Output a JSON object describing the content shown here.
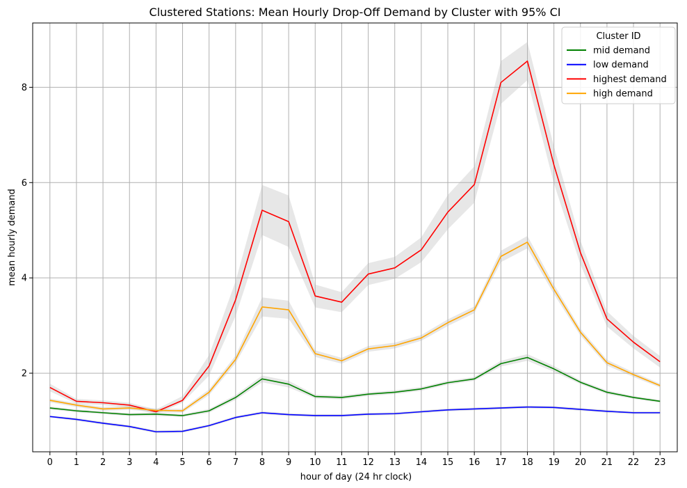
{
  "chart_data": {
    "type": "line",
    "title": "Clustered Stations: Mean Hourly Drop-Off Demand by Cluster with 95% CI",
    "xlabel": "hour of day (24 hr clock)",
    "ylabel": "mean hourly demand",
    "x": [
      0,
      1,
      2,
      3,
      4,
      5,
      6,
      7,
      8,
      9,
      10,
      11,
      12,
      13,
      14,
      15,
      16,
      17,
      18,
      19,
      20,
      21,
      22,
      23
    ],
    "x_tick_labels": [
      "0",
      "1",
      "2",
      "3",
      "4",
      "5",
      "6",
      "7",
      "8",
      "9",
      "10",
      "11",
      "12",
      "13",
      "14",
      "15",
      "16",
      "17",
      "18",
      "19",
      "20",
      "21",
      "22",
      "23"
    ],
    "xlim": [
      -0.65,
      23.65
    ],
    "ylim": [
      0.35,
      9.35
    ],
    "y_ticks": [
      2,
      4,
      6,
      8
    ],
    "y_tick_labels": [
      "2",
      "4",
      "6",
      "8"
    ],
    "grid": true,
    "legend": {
      "title": "Cluster ID",
      "placement": "top-right"
    },
    "ci_color": "#b0b0b0",
    "series": [
      {
        "name": "mid demand",
        "color": "#008000",
        "values": [
          1.27,
          1.21,
          1.17,
          1.13,
          1.14,
          1.11,
          1.21,
          1.49,
          1.88,
          1.77,
          1.51,
          1.49,
          1.56,
          1.6,
          1.67,
          1.8,
          1.88,
          2.2,
          2.33,
          2.09,
          1.81,
          1.6,
          1.49,
          1.41
        ],
        "ci_lower": [
          1.24,
          1.18,
          1.14,
          1.1,
          1.1,
          1.08,
          1.17,
          1.44,
          1.81,
          1.7,
          1.47,
          1.45,
          1.52,
          1.56,
          1.63,
          1.76,
          1.84,
          2.14,
          2.26,
          2.03,
          1.77,
          1.56,
          1.46,
          1.38
        ],
        "ci_upper": [
          1.3,
          1.24,
          1.2,
          1.16,
          1.18,
          1.14,
          1.25,
          1.54,
          1.95,
          1.84,
          1.55,
          1.53,
          1.6,
          1.64,
          1.71,
          1.84,
          1.92,
          2.26,
          2.4,
          2.15,
          1.85,
          1.64,
          1.52,
          1.44
        ]
      },
      {
        "name": "low demand",
        "color": "#0000ff",
        "values": [
          1.09,
          1.03,
          0.95,
          0.88,
          0.77,
          0.78,
          0.9,
          1.07,
          1.17,
          1.13,
          1.11,
          1.11,
          1.14,
          1.15,
          1.19,
          1.23,
          1.25,
          1.27,
          1.29,
          1.28,
          1.24,
          1.2,
          1.17,
          1.17
        ],
        "ci_lower": [
          1.07,
          1.0,
          0.92,
          0.85,
          0.74,
          0.75,
          0.87,
          1.04,
          1.14,
          1.1,
          1.08,
          1.08,
          1.11,
          1.12,
          1.16,
          1.2,
          1.22,
          1.24,
          1.26,
          1.25,
          1.21,
          1.17,
          1.14,
          1.14
        ],
        "ci_upper": [
          1.11,
          1.06,
          0.98,
          0.91,
          0.8,
          0.81,
          0.93,
          1.1,
          1.2,
          1.16,
          1.14,
          1.14,
          1.17,
          1.18,
          1.22,
          1.26,
          1.28,
          1.3,
          1.32,
          1.31,
          1.27,
          1.23,
          1.2,
          1.2
        ]
      },
      {
        "name": "highest demand",
        "color": "#ff0000",
        "values": [
          1.7,
          1.41,
          1.38,
          1.33,
          1.19,
          1.43,
          2.15,
          3.54,
          5.42,
          5.18,
          3.62,
          3.49,
          4.08,
          4.21,
          4.59,
          5.38,
          5.96,
          8.1,
          8.55,
          6.37,
          4.53,
          3.14,
          2.65,
          2.24
        ],
        "ci_lower": [
          1.62,
          1.36,
          1.33,
          1.28,
          1.14,
          1.38,
          1.95,
          3.2,
          4.9,
          4.65,
          3.38,
          3.28,
          3.85,
          3.98,
          4.33,
          5.02,
          5.58,
          7.65,
          8.15,
          5.98,
          4.28,
          2.98,
          2.52,
          2.12
        ],
        "ci_upper": [
          1.78,
          1.46,
          1.43,
          1.38,
          1.24,
          1.52,
          2.38,
          3.93,
          5.95,
          5.73,
          3.86,
          3.7,
          4.31,
          4.44,
          4.85,
          5.74,
          6.34,
          8.55,
          8.95,
          6.76,
          4.78,
          3.3,
          2.78,
          2.36
        ]
      },
      {
        "name": "high demand",
        "color": "#ffa500",
        "values": [
          1.43,
          1.33,
          1.25,
          1.27,
          1.22,
          1.21,
          1.6,
          2.29,
          3.39,
          3.33,
          2.41,
          2.26,
          2.51,
          2.58,
          2.74,
          3.06,
          3.33,
          4.45,
          4.75,
          3.76,
          2.86,
          2.22,
          1.97,
          1.74
        ],
        "ci_lower": [
          1.39,
          1.29,
          1.21,
          1.23,
          1.18,
          1.17,
          1.54,
          2.21,
          3.19,
          3.14,
          2.34,
          2.2,
          2.45,
          2.52,
          2.68,
          2.99,
          3.26,
          4.33,
          4.62,
          3.66,
          2.79,
          2.16,
          1.92,
          1.7
        ],
        "ci_upper": [
          1.47,
          1.37,
          1.29,
          1.31,
          1.26,
          1.25,
          1.66,
          2.37,
          3.59,
          3.52,
          2.48,
          2.32,
          2.57,
          2.64,
          2.8,
          3.13,
          3.4,
          4.57,
          4.88,
          3.86,
          2.93,
          2.28,
          2.02,
          1.78
        ]
      }
    ]
  }
}
